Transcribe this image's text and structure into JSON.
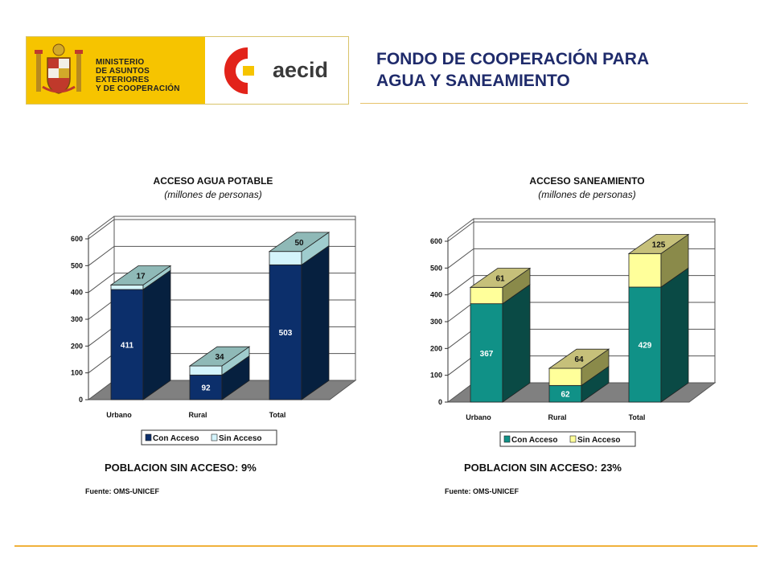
{
  "header": {
    "ministry_lines": [
      "MINISTERIO",
      "DE ASUNTOS EXTERIORES",
      "Y DE COOPERACIÓN"
    ],
    "aecid_logo_text": "aecid",
    "title_line1": "FONDO DE COOPERACIÓN PARA",
    "title_line2": "AGUA Y SANEAMIENTO"
  },
  "colors": {
    "brand_yellow": "#f6c400",
    "aecid_red": "#e2231a",
    "title_navy": "#1f2b6b",
    "water_con": "#0c2f6b",
    "water_sin": "#d4f4fb",
    "water_top_cap": "#8fb9b7",
    "san_con": "#109187",
    "san_sin": "#ffff9a",
    "san_top_cap": "#c6c07a",
    "floor": "#808080"
  },
  "chart_data": [
    {
      "type": "bar",
      "stacked": true,
      "title": "ACCESO AGUA POTABLE",
      "subtitle": "(millones de personas)",
      "categories": [
        "Urbano",
        "Rural",
        "Total"
      ],
      "series": [
        {
          "name": "Con Acceso",
          "values": [
            411,
            92,
            503
          ]
        },
        {
          "name": "Sin Acceso",
          "values": [
            17,
            34,
            50
          ]
        }
      ],
      "y_ticks": [
        "0",
        "100",
        "200",
        "300",
        "400",
        "500",
        "600"
      ],
      "ylim": [
        0,
        600
      ],
      "legend_position": "bottom",
      "summary": "POBLACION SIN ACCESO: 9%",
      "source_label": "Fuente:",
      "source_value": "OMS-UNICEF"
    },
    {
      "type": "bar",
      "stacked": true,
      "title": "ACCESO SANEAMIENTO",
      "subtitle": "(millones de personas)",
      "categories": [
        "Urbano",
        "Rural",
        "Total"
      ],
      "series": [
        {
          "name": "Con Acceso",
          "values": [
            367,
            62,
            429
          ]
        },
        {
          "name": "Sin Acceso",
          "values": [
            61,
            64,
            125
          ]
        }
      ],
      "y_ticks": [
        "0",
        "100",
        "200",
        "300",
        "400",
        "500",
        "600"
      ],
      "ylim": [
        0,
        600
      ],
      "legend_position": "bottom",
      "summary": "POBLACION SIN ACCESO: 23%",
      "source_label": "Fuente:",
      "source_value": "OMS-UNICEF"
    }
  ]
}
